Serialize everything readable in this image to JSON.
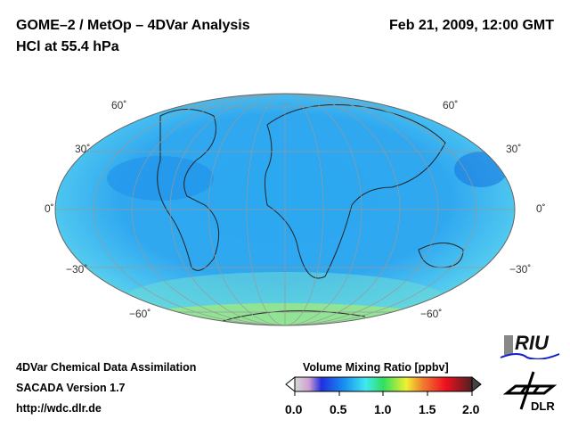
{
  "header": {
    "title_left_1": "GOME–2 / MetOp – 4DVar Analysis",
    "title_left_2": "HCl at 55.4 hPa",
    "date": "Feb 21, 2009, 12:00 GMT"
  },
  "map": {
    "projection": "Hammer/Aitoff global",
    "lat_labels": [
      "60˚",
      "30˚",
      "0˚",
      "−30˚",
      "−60˚"
    ]
  },
  "footer": {
    "line1": "4DVar Chemical Data Assimilation",
    "line2": "SACADA Version 1.7",
    "line3": "http://wdc.dlr.de"
  },
  "colorbar": {
    "title": "Volume Mixing Ratio [ppbv]",
    "ticks": [
      "0.0",
      "0.5",
      "1.0",
      "1.5",
      "2.0"
    ],
    "range": [
      0,
      2.0
    ],
    "colors": [
      "#d8d8d8",
      "#d0a0d0",
      "#2030e0",
      "#1890f0",
      "#40e8f0",
      "#30e060",
      "#f0f030",
      "#f08030",
      "#f01020",
      "#601010"
    ]
  },
  "logos": {
    "riu": "RIU",
    "dlr": "DLR"
  }
}
